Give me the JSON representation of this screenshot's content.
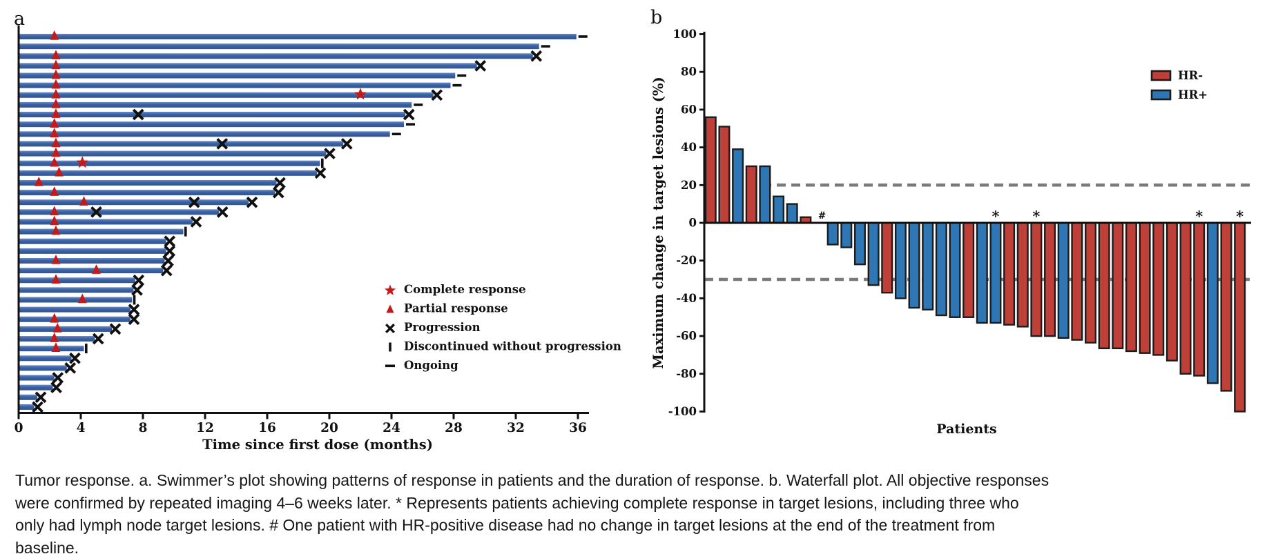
{
  "figure": {
    "panel_a_label": "a",
    "panel_b_label": "b"
  },
  "caption": {
    "text": "Tumor response. a. Swimmer’s plot showing patterns of response in patients and the duration of response. b. Waterfall plot. All objective responses were confirmed by repeated imaging 4–6 weeks later. * Represents patients achieving complete response in target lesions, including three who only had lymph node target lesions. # One patient with HR-positive disease had no change in target lesions at the end of the treatment from baseline."
  },
  "chart_data": [
    {
      "type": "swimmer",
      "panel": "a",
      "xlabel": "Time since first dose (months)",
      "xlim": [
        0,
        37.5
      ],
      "xticks": [
        0,
        4,
        8,
        12,
        16,
        20,
        24,
        28,
        32,
        36
      ],
      "grid": false,
      "bar_color": "#3b63a6",
      "response_marker_color": "#c41a1a",
      "event_marker_color": "#101010",
      "legend_position": "lower right inside",
      "legend": [
        {
          "symbol": "star",
          "label": "Complete response"
        },
        {
          "symbol": "triangle",
          "label": "Partial response"
        },
        {
          "symbol": "x",
          "label": "Progression"
        },
        {
          "symbol": "bar",
          "label": "Discontinued without progression"
        },
        {
          "symbol": "dash",
          "label": "Ongoing"
        }
      ],
      "patients": [
        {
          "duration": 35.9,
          "pr": 2.3,
          "end": "ongoing"
        },
        {
          "duration": 33.5,
          "end": "ongoing"
        },
        {
          "duration": 33.1,
          "pr": 2.4,
          "end": "progression"
        },
        {
          "duration": 29.5,
          "pr": 2.4,
          "end": "progression"
        },
        {
          "duration": 28.1,
          "pr": 2.4,
          "end": "ongoing"
        },
        {
          "duration": 27.8,
          "pr": 2.4,
          "end": "ongoing"
        },
        {
          "duration": 26.7,
          "pr": 2.4,
          "cr": 22.0,
          "end": "progression"
        },
        {
          "duration": 25.3,
          "pr": 2.4,
          "end": "ongoing"
        },
        {
          "duration": 24.9,
          "pr": 2.4,
          "prog": [
            7.7
          ],
          "end": "progression"
        },
        {
          "duration": 24.8,
          "pr": 2.3,
          "end": "ongoing"
        },
        {
          "duration": 23.9,
          "pr": 2.3,
          "end": "ongoing"
        },
        {
          "duration": 20.9,
          "pr": 2.4,
          "prog": [
            13.1
          ],
          "end": "progression"
        },
        {
          "duration": 19.8,
          "pr": 2.4,
          "end": "progression"
        },
        {
          "duration": 19.4,
          "pr": 2.3,
          "cr": 4.1,
          "end": "discontinued"
        },
        {
          "duration": 19.2,
          "pr": 2.6,
          "end": "progression"
        },
        {
          "duration": 16.6,
          "pr": 1.3,
          "end": "progression"
        },
        {
          "duration": 16.5,
          "pr": 2.3,
          "end": "progression"
        },
        {
          "duration": 14.8,
          "pr": 4.2,
          "prog": [
            11.3
          ],
          "end": "progression"
        },
        {
          "duration": 12.9,
          "pr": 2.3,
          "prog": [
            5.0
          ],
          "end": "progression"
        },
        {
          "duration": 11.2,
          "pr": 2.3,
          "end": "progression"
        },
        {
          "duration": 10.6,
          "pr": 2.4,
          "end": "discontinued"
        },
        {
          "duration": 9.5,
          "end": "progression"
        },
        {
          "duration": 9.5,
          "end": "progression"
        },
        {
          "duration": 9.4,
          "pr": 2.4,
          "end": "progression"
        },
        {
          "duration": 9.3,
          "pr": 5.0,
          "end": "progression"
        },
        {
          "duration": 7.5,
          "pr": 2.4,
          "end": "progression"
        },
        {
          "duration": 7.4,
          "end": "progression"
        },
        {
          "duration": 7.3,
          "pr": 4.1,
          "end": "discontinued"
        },
        {
          "duration": 7.2,
          "end": "progression"
        },
        {
          "duration": 7.2,
          "pr": 2.3,
          "end": "progression"
        },
        {
          "duration": 6.0,
          "pr": 2.5,
          "end": "progression"
        },
        {
          "duration": 4.9,
          "pr": 2.3,
          "end": "progression"
        },
        {
          "duration": 4.2,
          "pr": 2.4,
          "end": "discontinued"
        },
        {
          "duration": 3.4,
          "end": "progression"
        },
        {
          "duration": 3.1,
          "end": "progression"
        },
        {
          "duration": 2.3,
          "end": "progression"
        },
        {
          "duration": 2.2,
          "end": "progression"
        },
        {
          "duration": 1.2,
          "end": "progression"
        },
        {
          "duration": 1.0,
          "end": "progression"
        }
      ]
    },
    {
      "type": "bar",
      "subtype": "waterfall",
      "panel": "b",
      "ylabel": "Maximum change in target lesions (%)",
      "xlabel": "Patients",
      "ylim": [
        -100,
        100
      ],
      "yticks": [
        100,
        80,
        60,
        40,
        20,
        0,
        -20,
        -40,
        -60,
        -80,
        -100
      ],
      "reference_lines": [
        20,
        -30
      ],
      "reference_line_color": "#7a7a7a",
      "legend_position": "upper right inside",
      "legend": [
        {
          "label": "HR-",
          "color": "#bf4038"
        },
        {
          "label": "HR+",
          "color": "#2f76b5"
        }
      ],
      "bars": [
        {
          "value": 56,
          "group": "HR-"
        },
        {
          "value": 51,
          "group": "HR-"
        },
        {
          "value": 39,
          "group": "HR+"
        },
        {
          "value": 30,
          "group": "HR-"
        },
        {
          "value": 30,
          "group": "HR+"
        },
        {
          "value": 14,
          "group": "HR+"
        },
        {
          "value": 10,
          "group": "HR+"
        },
        {
          "value": 3,
          "group": "HR-"
        },
        {
          "value": 0,
          "group": "HR+",
          "annotation": "#"
        },
        {
          "value": -11.5,
          "group": "HR+"
        },
        {
          "value": -13,
          "group": "HR+"
        },
        {
          "value": -22,
          "group": "HR+"
        },
        {
          "value": -33,
          "group": "HR+"
        },
        {
          "value": -37,
          "group": "HR-"
        },
        {
          "value": -40,
          "group": "HR+"
        },
        {
          "value": -45,
          "group": "HR+"
        },
        {
          "value": -46,
          "group": "HR+"
        },
        {
          "value": -49,
          "group": "HR+"
        },
        {
          "value": -50,
          "group": "HR+"
        },
        {
          "value": -50,
          "group": "HR-"
        },
        {
          "value": -53,
          "group": "HR+"
        },
        {
          "value": -53,
          "group": "HR+",
          "annotation": "*"
        },
        {
          "value": -54,
          "group": "HR-"
        },
        {
          "value": -55,
          "group": "HR-"
        },
        {
          "value": -60,
          "group": "HR-",
          "annotation": "*"
        },
        {
          "value": -60,
          "group": "HR-"
        },
        {
          "value": -61,
          "group": "HR+"
        },
        {
          "value": -62,
          "group": "HR-"
        },
        {
          "value": -63.5,
          "group": "HR-"
        },
        {
          "value": -66.5,
          "group": "HR-"
        },
        {
          "value": -66.5,
          "group": "HR-"
        },
        {
          "value": -68,
          "group": "HR-"
        },
        {
          "value": -69,
          "group": "HR-"
        },
        {
          "value": -70,
          "group": "HR-"
        },
        {
          "value": -73,
          "group": "HR-"
        },
        {
          "value": -80,
          "group": "HR-"
        },
        {
          "value": -81,
          "group": "HR-",
          "annotation": "*"
        },
        {
          "value": -85,
          "group": "HR+"
        },
        {
          "value": -89,
          "group": "HR-"
        },
        {
          "value": -100,
          "group": "HR-",
          "annotation": "*"
        }
      ]
    }
  ]
}
